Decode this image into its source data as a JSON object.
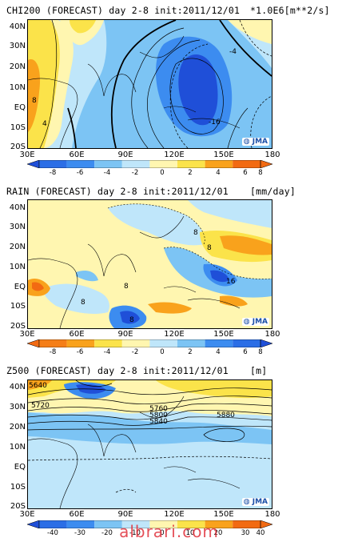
{
  "panels": [
    {
      "title": "CHI200 (FORECAST) day 2-8 init:2011/12/01",
      "unit": "*1.0E6[m**2/s]",
      "contour_labels": [
        "8",
        "4",
        "-4",
        "-16"
      ],
      "colorbar": {
        "ticks": [
          "-8",
          "-6",
          "-4",
          "-2",
          "0",
          "2",
          "4",
          "6",
          "8"
        ]
      }
    },
    {
      "title": "RAIN (FORECAST) day 2-8 init:2011/12/01",
      "unit": "[mm/day]",
      "contour_labels": [
        "8",
        "8",
        "8",
        "16",
        "8",
        "8"
      ],
      "colorbar": {
        "ticks": [
          "-8",
          "-6",
          "-4",
          "-2",
          "0",
          "2",
          "4",
          "6",
          "8"
        ]
      }
    },
    {
      "title": "Z500 (FORECAST) day 2-8 init:2011/12/01",
      "unit": "[m]",
      "contour_labels": [
        "5640",
        "5720",
        "5760",
        "5800",
        "5840",
        "5880"
      ],
      "colorbar": {
        "ticks": [
          "-40",
          "-30",
          "-20",
          "-10",
          "0",
          "10",
          "20",
          "30",
          "40"
        ]
      }
    }
  ],
  "axes": {
    "lat_labels": [
      "40N",
      "30N",
      "20N",
      "10N",
      "EQ",
      "10S",
      "20S"
    ],
    "lon_labels": [
      "30E",
      "60E",
      "90E",
      "120E",
      "150E",
      "180"
    ]
  },
  "logo_text": "JMA",
  "watermark": "albrari.com",
  "colors": {
    "deep_blue": "#1f4fd8",
    "blue": "#3c8cf0",
    "light_blue": "#7cc4f4",
    "pale_blue": "#bfe6fa",
    "pale_yellow": "#fff6b0",
    "yellow": "#fbe34a",
    "orange": "#f9a21c",
    "deep_orange": "#f26a12"
  }
}
